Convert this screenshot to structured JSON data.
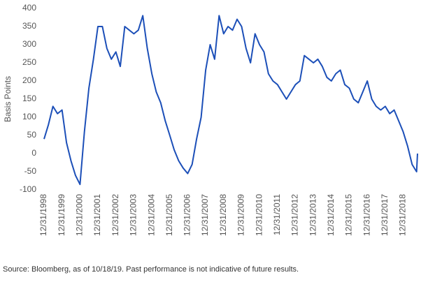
{
  "chart_data": {
    "type": "line",
    "ylabel": "Basis Points",
    "source": "Source: Bloomberg, as of 10/18/19. Past performance is not indicative of future results.",
    "x": [
      "12/31/1998",
      "03/31/1999",
      "06/30/1999",
      "09/30/1999",
      "12/31/1999",
      "03/31/2000",
      "06/30/2000",
      "09/30/2000",
      "12/31/2000",
      "03/31/2001",
      "06/30/2001",
      "09/30/2001",
      "12/31/2001",
      "03/31/2002",
      "06/30/2002",
      "09/30/2002",
      "12/31/2002",
      "03/31/2003",
      "06/30/2003",
      "09/30/2003",
      "12/31/2003",
      "03/31/2004",
      "06/30/2004",
      "09/30/2004",
      "12/31/2004",
      "03/31/2005",
      "06/30/2005",
      "09/30/2005",
      "12/31/2005",
      "03/31/2006",
      "06/30/2006",
      "09/30/2006",
      "12/31/2006",
      "03/31/2007",
      "06/30/2007",
      "09/30/2007",
      "12/31/2007",
      "03/31/2008",
      "06/30/2008",
      "09/30/2008",
      "12/31/2008",
      "03/31/2009",
      "06/30/2009",
      "09/30/2009",
      "12/31/2009",
      "03/31/2010",
      "06/30/2010",
      "09/30/2010",
      "12/31/2010",
      "03/31/2011",
      "06/30/2011",
      "09/30/2011",
      "12/31/2011",
      "03/31/2012",
      "06/30/2012",
      "09/30/2012",
      "12/31/2012",
      "03/31/2013",
      "06/30/2013",
      "09/30/2013",
      "12/31/2013",
      "03/31/2014",
      "06/30/2014",
      "09/30/2014",
      "12/31/2014",
      "03/31/2015",
      "06/30/2015",
      "09/30/2015",
      "12/31/2015",
      "03/31/2016",
      "06/30/2016",
      "09/30/2016",
      "12/31/2016",
      "03/31/2017",
      "06/30/2017",
      "09/30/2017",
      "12/31/2017",
      "03/31/2018",
      "06/30/2018",
      "09/30/2018",
      "12/31/2018",
      "03/31/2019",
      "06/30/2019",
      "09/30/2019",
      "10/18/2019"
    ],
    "series": [
      {
        "color": "#1c4fb8",
        "values": [
          40,
          80,
          130,
          110,
          120,
          30,
          -20,
          -60,
          -85,
          60,
          180,
          260,
          350,
          350,
          290,
          260,
          280,
          240,
          350,
          340,
          330,
          340,
          380,
          290,
          220,
          170,
          140,
          90,
          50,
          10,
          -20,
          -40,
          -55,
          -30,
          40,
          100,
          230,
          300,
          260,
          380,
          330,
          350,
          340,
          370,
          350,
          290,
          250,
          330,
          300,
          280,
          220,
          200,
          190,
          170,
          150,
          170,
          190,
          200,
          270,
          260,
          250,
          260,
          240,
          210,
          200,
          220,
          230,
          190,
          180,
          150,
          140,
          170,
          200,
          150,
          130,
          120,
          130,
          110,
          120,
          90,
          60,
          20,
          -30,
          -50,
          0
        ]
      }
    ],
    "xlim": [
      "12/31/1998",
      "10/18/2019"
    ],
    "xticks": [
      "12/31/1998",
      "12/31/1999",
      "12/31/2000",
      "12/31/2001",
      "12/31/2002",
      "12/31/2003",
      "12/31/2004",
      "12/31/2005",
      "12/31/2006",
      "12/31/2007",
      "12/31/2008",
      "12/31/2009",
      "12/31/2010",
      "12/31/2011",
      "12/31/2012",
      "12/31/2013",
      "12/31/2014",
      "12/31/2015",
      "12/31/2016",
      "12/31/2017",
      "12/31/2018"
    ],
    "ylim": [
      -100,
      400
    ],
    "yticks": [
      -100,
      -50,
      0,
      50,
      100,
      150,
      200,
      250,
      300,
      350,
      400
    ],
    "grid": false
  }
}
